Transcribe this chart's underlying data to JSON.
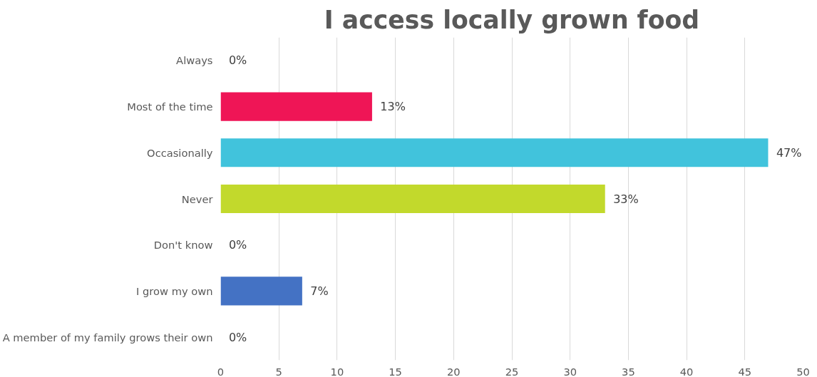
{
  "chart_data": {
    "type": "bar",
    "orientation": "horizontal",
    "title": "I access locally grown food",
    "categories": [
      "Always",
      "Most of the time",
      "Occasionally",
      "Never",
      "Don't know",
      "I grow my own",
      "A member of my family grows their own"
    ],
    "values": [
      0,
      13,
      47,
      33,
      0,
      7,
      0
    ],
    "colors": [
      "#a5a5a5",
      "#ef1556",
      "#41c3dc",
      "#c2d92c",
      "#a5a5a5",
      "#4472c4",
      "#a5a5a5"
    ],
    "value_labels": [
      "0%",
      "13%",
      "47%",
      "33%",
      "0%",
      "7%",
      "0%"
    ],
    "xlim": [
      0,
      50
    ],
    "xticks": [
      0,
      5,
      10,
      15,
      20,
      25,
      30,
      35,
      40,
      45,
      50
    ],
    "grid": "x"
  }
}
